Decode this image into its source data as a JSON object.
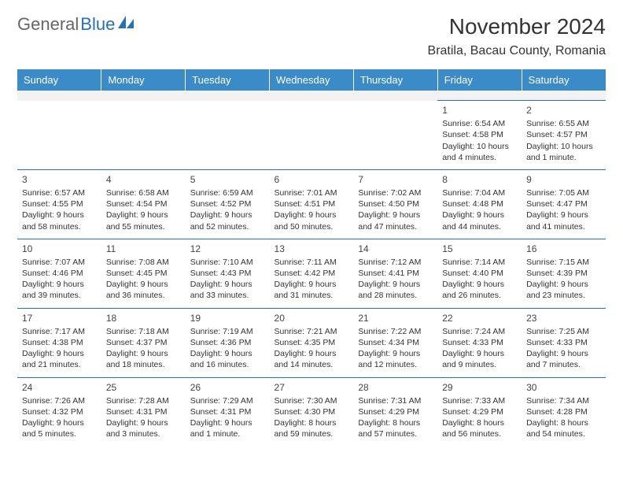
{
  "logo": {
    "text1": "General",
    "text2": "Blue"
  },
  "title": {
    "month": "November 2024",
    "location": "Bratila, Bacau County, Romania"
  },
  "colors": {
    "header_bg": "#3b8bc9",
    "header_text": "#ffffff",
    "accent": "#2570b8",
    "blank_bg": "#f2f2f2"
  },
  "dayHeaders": [
    "Sunday",
    "Monday",
    "Tuesday",
    "Wednesday",
    "Thursday",
    "Friday",
    "Saturday"
  ],
  "weeks": [
    [
      null,
      null,
      null,
      null,
      null,
      {
        "n": "1",
        "sunrise": "Sunrise: 6:54 AM",
        "sunset": "Sunset: 4:58 PM",
        "daylight": "Daylight: 10 hours and 4 minutes."
      },
      {
        "n": "2",
        "sunrise": "Sunrise: 6:55 AM",
        "sunset": "Sunset: 4:57 PM",
        "daylight": "Daylight: 10 hours and 1 minute."
      }
    ],
    [
      {
        "n": "3",
        "sunrise": "Sunrise: 6:57 AM",
        "sunset": "Sunset: 4:55 PM",
        "daylight": "Daylight: 9 hours and 58 minutes."
      },
      {
        "n": "4",
        "sunrise": "Sunrise: 6:58 AM",
        "sunset": "Sunset: 4:54 PM",
        "daylight": "Daylight: 9 hours and 55 minutes."
      },
      {
        "n": "5",
        "sunrise": "Sunrise: 6:59 AM",
        "sunset": "Sunset: 4:52 PM",
        "daylight": "Daylight: 9 hours and 52 minutes."
      },
      {
        "n": "6",
        "sunrise": "Sunrise: 7:01 AM",
        "sunset": "Sunset: 4:51 PM",
        "daylight": "Daylight: 9 hours and 50 minutes."
      },
      {
        "n": "7",
        "sunrise": "Sunrise: 7:02 AM",
        "sunset": "Sunset: 4:50 PM",
        "daylight": "Daylight: 9 hours and 47 minutes."
      },
      {
        "n": "8",
        "sunrise": "Sunrise: 7:04 AM",
        "sunset": "Sunset: 4:48 PM",
        "daylight": "Daylight: 9 hours and 44 minutes."
      },
      {
        "n": "9",
        "sunrise": "Sunrise: 7:05 AM",
        "sunset": "Sunset: 4:47 PM",
        "daylight": "Daylight: 9 hours and 41 minutes."
      }
    ],
    [
      {
        "n": "10",
        "sunrise": "Sunrise: 7:07 AM",
        "sunset": "Sunset: 4:46 PM",
        "daylight": "Daylight: 9 hours and 39 minutes."
      },
      {
        "n": "11",
        "sunrise": "Sunrise: 7:08 AM",
        "sunset": "Sunset: 4:45 PM",
        "daylight": "Daylight: 9 hours and 36 minutes."
      },
      {
        "n": "12",
        "sunrise": "Sunrise: 7:10 AM",
        "sunset": "Sunset: 4:43 PM",
        "daylight": "Daylight: 9 hours and 33 minutes."
      },
      {
        "n": "13",
        "sunrise": "Sunrise: 7:11 AM",
        "sunset": "Sunset: 4:42 PM",
        "daylight": "Daylight: 9 hours and 31 minutes."
      },
      {
        "n": "14",
        "sunrise": "Sunrise: 7:12 AM",
        "sunset": "Sunset: 4:41 PM",
        "daylight": "Daylight: 9 hours and 28 minutes."
      },
      {
        "n": "15",
        "sunrise": "Sunrise: 7:14 AM",
        "sunset": "Sunset: 4:40 PM",
        "daylight": "Daylight: 9 hours and 26 minutes."
      },
      {
        "n": "16",
        "sunrise": "Sunrise: 7:15 AM",
        "sunset": "Sunset: 4:39 PM",
        "daylight": "Daylight: 9 hours and 23 minutes."
      }
    ],
    [
      {
        "n": "17",
        "sunrise": "Sunrise: 7:17 AM",
        "sunset": "Sunset: 4:38 PM",
        "daylight": "Daylight: 9 hours and 21 minutes."
      },
      {
        "n": "18",
        "sunrise": "Sunrise: 7:18 AM",
        "sunset": "Sunset: 4:37 PM",
        "daylight": "Daylight: 9 hours and 18 minutes."
      },
      {
        "n": "19",
        "sunrise": "Sunrise: 7:19 AM",
        "sunset": "Sunset: 4:36 PM",
        "daylight": "Daylight: 9 hours and 16 minutes."
      },
      {
        "n": "20",
        "sunrise": "Sunrise: 7:21 AM",
        "sunset": "Sunset: 4:35 PM",
        "daylight": "Daylight: 9 hours and 14 minutes."
      },
      {
        "n": "21",
        "sunrise": "Sunrise: 7:22 AM",
        "sunset": "Sunset: 4:34 PM",
        "daylight": "Daylight: 9 hours and 12 minutes."
      },
      {
        "n": "22",
        "sunrise": "Sunrise: 7:24 AM",
        "sunset": "Sunset: 4:33 PM",
        "daylight": "Daylight: 9 hours and 9 minutes."
      },
      {
        "n": "23",
        "sunrise": "Sunrise: 7:25 AM",
        "sunset": "Sunset: 4:33 PM",
        "daylight": "Daylight: 9 hours and 7 minutes."
      }
    ],
    [
      {
        "n": "24",
        "sunrise": "Sunrise: 7:26 AM",
        "sunset": "Sunset: 4:32 PM",
        "daylight": "Daylight: 9 hours and 5 minutes."
      },
      {
        "n": "25",
        "sunrise": "Sunrise: 7:28 AM",
        "sunset": "Sunset: 4:31 PM",
        "daylight": "Daylight: 9 hours and 3 minutes."
      },
      {
        "n": "26",
        "sunrise": "Sunrise: 7:29 AM",
        "sunset": "Sunset: 4:31 PM",
        "daylight": "Daylight: 9 hours and 1 minute."
      },
      {
        "n": "27",
        "sunrise": "Sunrise: 7:30 AM",
        "sunset": "Sunset: 4:30 PM",
        "daylight": "Daylight: 8 hours and 59 minutes."
      },
      {
        "n": "28",
        "sunrise": "Sunrise: 7:31 AM",
        "sunset": "Sunset: 4:29 PM",
        "daylight": "Daylight: 8 hours and 57 minutes."
      },
      {
        "n": "29",
        "sunrise": "Sunrise: 7:33 AM",
        "sunset": "Sunset: 4:29 PM",
        "daylight": "Daylight: 8 hours and 56 minutes."
      },
      {
        "n": "30",
        "sunrise": "Sunrise: 7:34 AM",
        "sunset": "Sunset: 4:28 PM",
        "daylight": "Daylight: 8 hours and 54 minutes."
      }
    ]
  ]
}
